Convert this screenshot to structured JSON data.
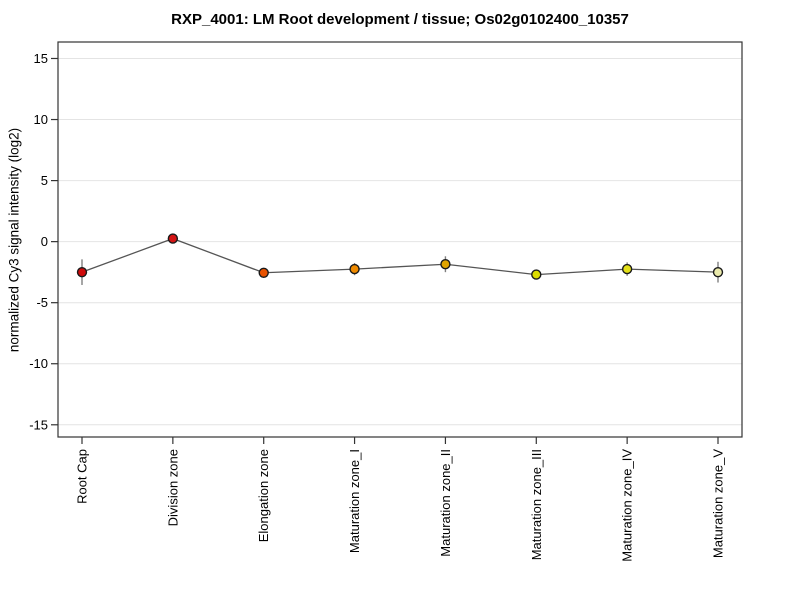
{
  "chart_data": {
    "type": "line",
    "title": "RXP_4001: LM Root development / tissue; Os02g0102400_10357",
    "ylabel": "normalized Cy3 signal intensity (log2)",
    "xlabel": "",
    "categories": [
      "Root Cap",
      "Division zone",
      "Elongation zone",
      "Maturation zone_I",
      "Maturation zone_II",
      "Maturation zone_III",
      "Maturation zone_IV",
      "Maturation zone_V"
    ],
    "values": [
      -2.5,
      0.25,
      -2.55,
      -2.25,
      -1.85,
      -2.7,
      -2.25,
      -2.5
    ],
    "errors": [
      1.05,
      0.35,
      0.3,
      0.5,
      0.65,
      0.4,
      0.55,
      0.85
    ],
    "point_colors": [
      "#cf0a0a",
      "#d41414",
      "#e85200",
      "#ef8a00",
      "#e0a400",
      "#dcdc00",
      "#e3e018",
      "#eaeaac"
    ],
    "yticks": [
      15,
      10,
      5,
      0,
      -5,
      -10,
      -15
    ],
    "ylim": [
      -16.0,
      16.35
    ],
    "grid": true,
    "legend": false,
    "colors": {
      "line": "#555555",
      "error_bar": "#808080",
      "grid": "#e4e4e4",
      "axis": "#333333",
      "tick_label": "#000000",
      "background": "#ffffff",
      "marker_stroke": "#1a1a1a"
    }
  }
}
